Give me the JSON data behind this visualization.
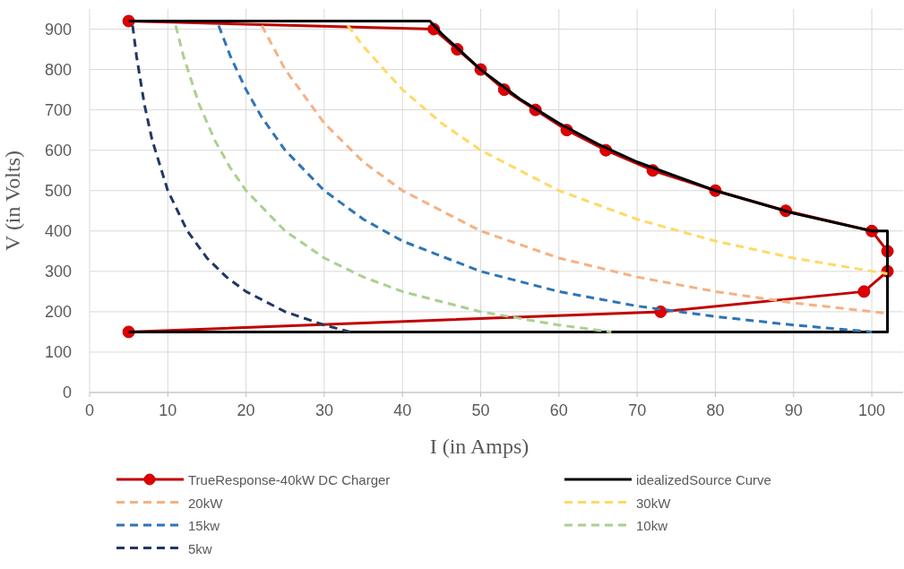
{
  "chart_data": {
    "type": "line",
    "xlabel": "I (in Amps)",
    "ylabel": "V (in Volts)",
    "xlim": [
      0,
      104
    ],
    "xticks": [
      0,
      10,
      20,
      30,
      40,
      50,
      60,
      70,
      80,
      90,
      100
    ],
    "ylim": [
      0,
      950
    ],
    "yticks": [
      0,
      100,
      200,
      300,
      400,
      500,
      600,
      700,
      800,
      900
    ],
    "grid": true,
    "legend": "bottom",
    "series": [
      {
        "name": "TrueResponse-40kW DC Charger",
        "color": "#c00000",
        "marker": "circle",
        "line_style": "solid",
        "x": [
          5,
          44,
          47,
          50,
          53,
          57,
          61,
          66,
          72,
          80,
          89,
          100,
          102,
          102,
          99,
          73,
          5
        ],
        "values": [
          920,
          900,
          850,
          800,
          750,
          700,
          650,
          600,
          550,
          500,
          450,
          400,
          350,
          300,
          250,
          200,
          150
        ]
      },
      {
        "name": "idealizedSource Curve",
        "color": "#000000",
        "marker": "none",
        "line_style": "solid",
        "x": [
          5,
          43.5,
          45,
          50,
          55,
          60,
          65,
          70,
          80,
          90,
          100,
          102,
          102,
          5
        ],
        "values": [
          920,
          920,
          889,
          800,
          727,
          667,
          615,
          571,
          500,
          444,
          400,
          400,
          150,
          150
        ]
      },
      {
        "name": "20kW",
        "color": "#f4b183",
        "marker": "none",
        "line_style": "dashed",
        "x": [
          22,
          25,
          30,
          35,
          40,
          50,
          60,
          70,
          80,
          90,
          102
        ],
        "values": [
          909,
          800,
          667,
          571,
          500,
          400,
          333,
          286,
          250,
          222,
          196
        ]
      },
      {
        "name": "30kW",
        "color": "#ffd966",
        "marker": "none",
        "line_style": "dashed",
        "x": [
          33,
          35,
          40,
          45,
          50,
          60,
          70,
          80,
          90,
          102
        ],
        "values": [
          909,
          857,
          750,
          667,
          600,
          500,
          429,
          375,
          333,
          294
        ]
      },
      {
        "name": "15kw",
        "color": "#2e75b6",
        "marker": "none",
        "line_style": "dashed",
        "x": [
          16.5,
          18,
          20,
          22,
          25,
          30,
          35,
          40,
          50,
          60,
          70,
          80,
          90,
          100
        ],
        "values": [
          909,
          833,
          750,
          682,
          600,
          500,
          429,
          375,
          300,
          250,
          214,
          188,
          167,
          150
        ]
      },
      {
        "name": "10kw",
        "color": "#a9d18e",
        "marker": "none",
        "line_style": "dashed",
        "x": [
          11,
          12,
          14,
          16,
          18,
          20,
          25,
          30,
          35,
          40,
          50,
          60,
          66.7
        ],
        "values": [
          909,
          833,
          714,
          625,
          556,
          500,
          400,
          333,
          286,
          250,
          200,
          167,
          150
        ]
      },
      {
        "name": "5kw",
        "color": "#203864",
        "marker": "none",
        "line_style": "dashed",
        "x": [
          5.5,
          6,
          7,
          8,
          10,
          12.5,
          15,
          17.5,
          20,
          25,
          30,
          33.3
        ],
        "values": [
          909,
          833,
          714,
          625,
          500,
          400,
          333,
          286,
          250,
          200,
          167,
          150
        ]
      }
    ]
  }
}
